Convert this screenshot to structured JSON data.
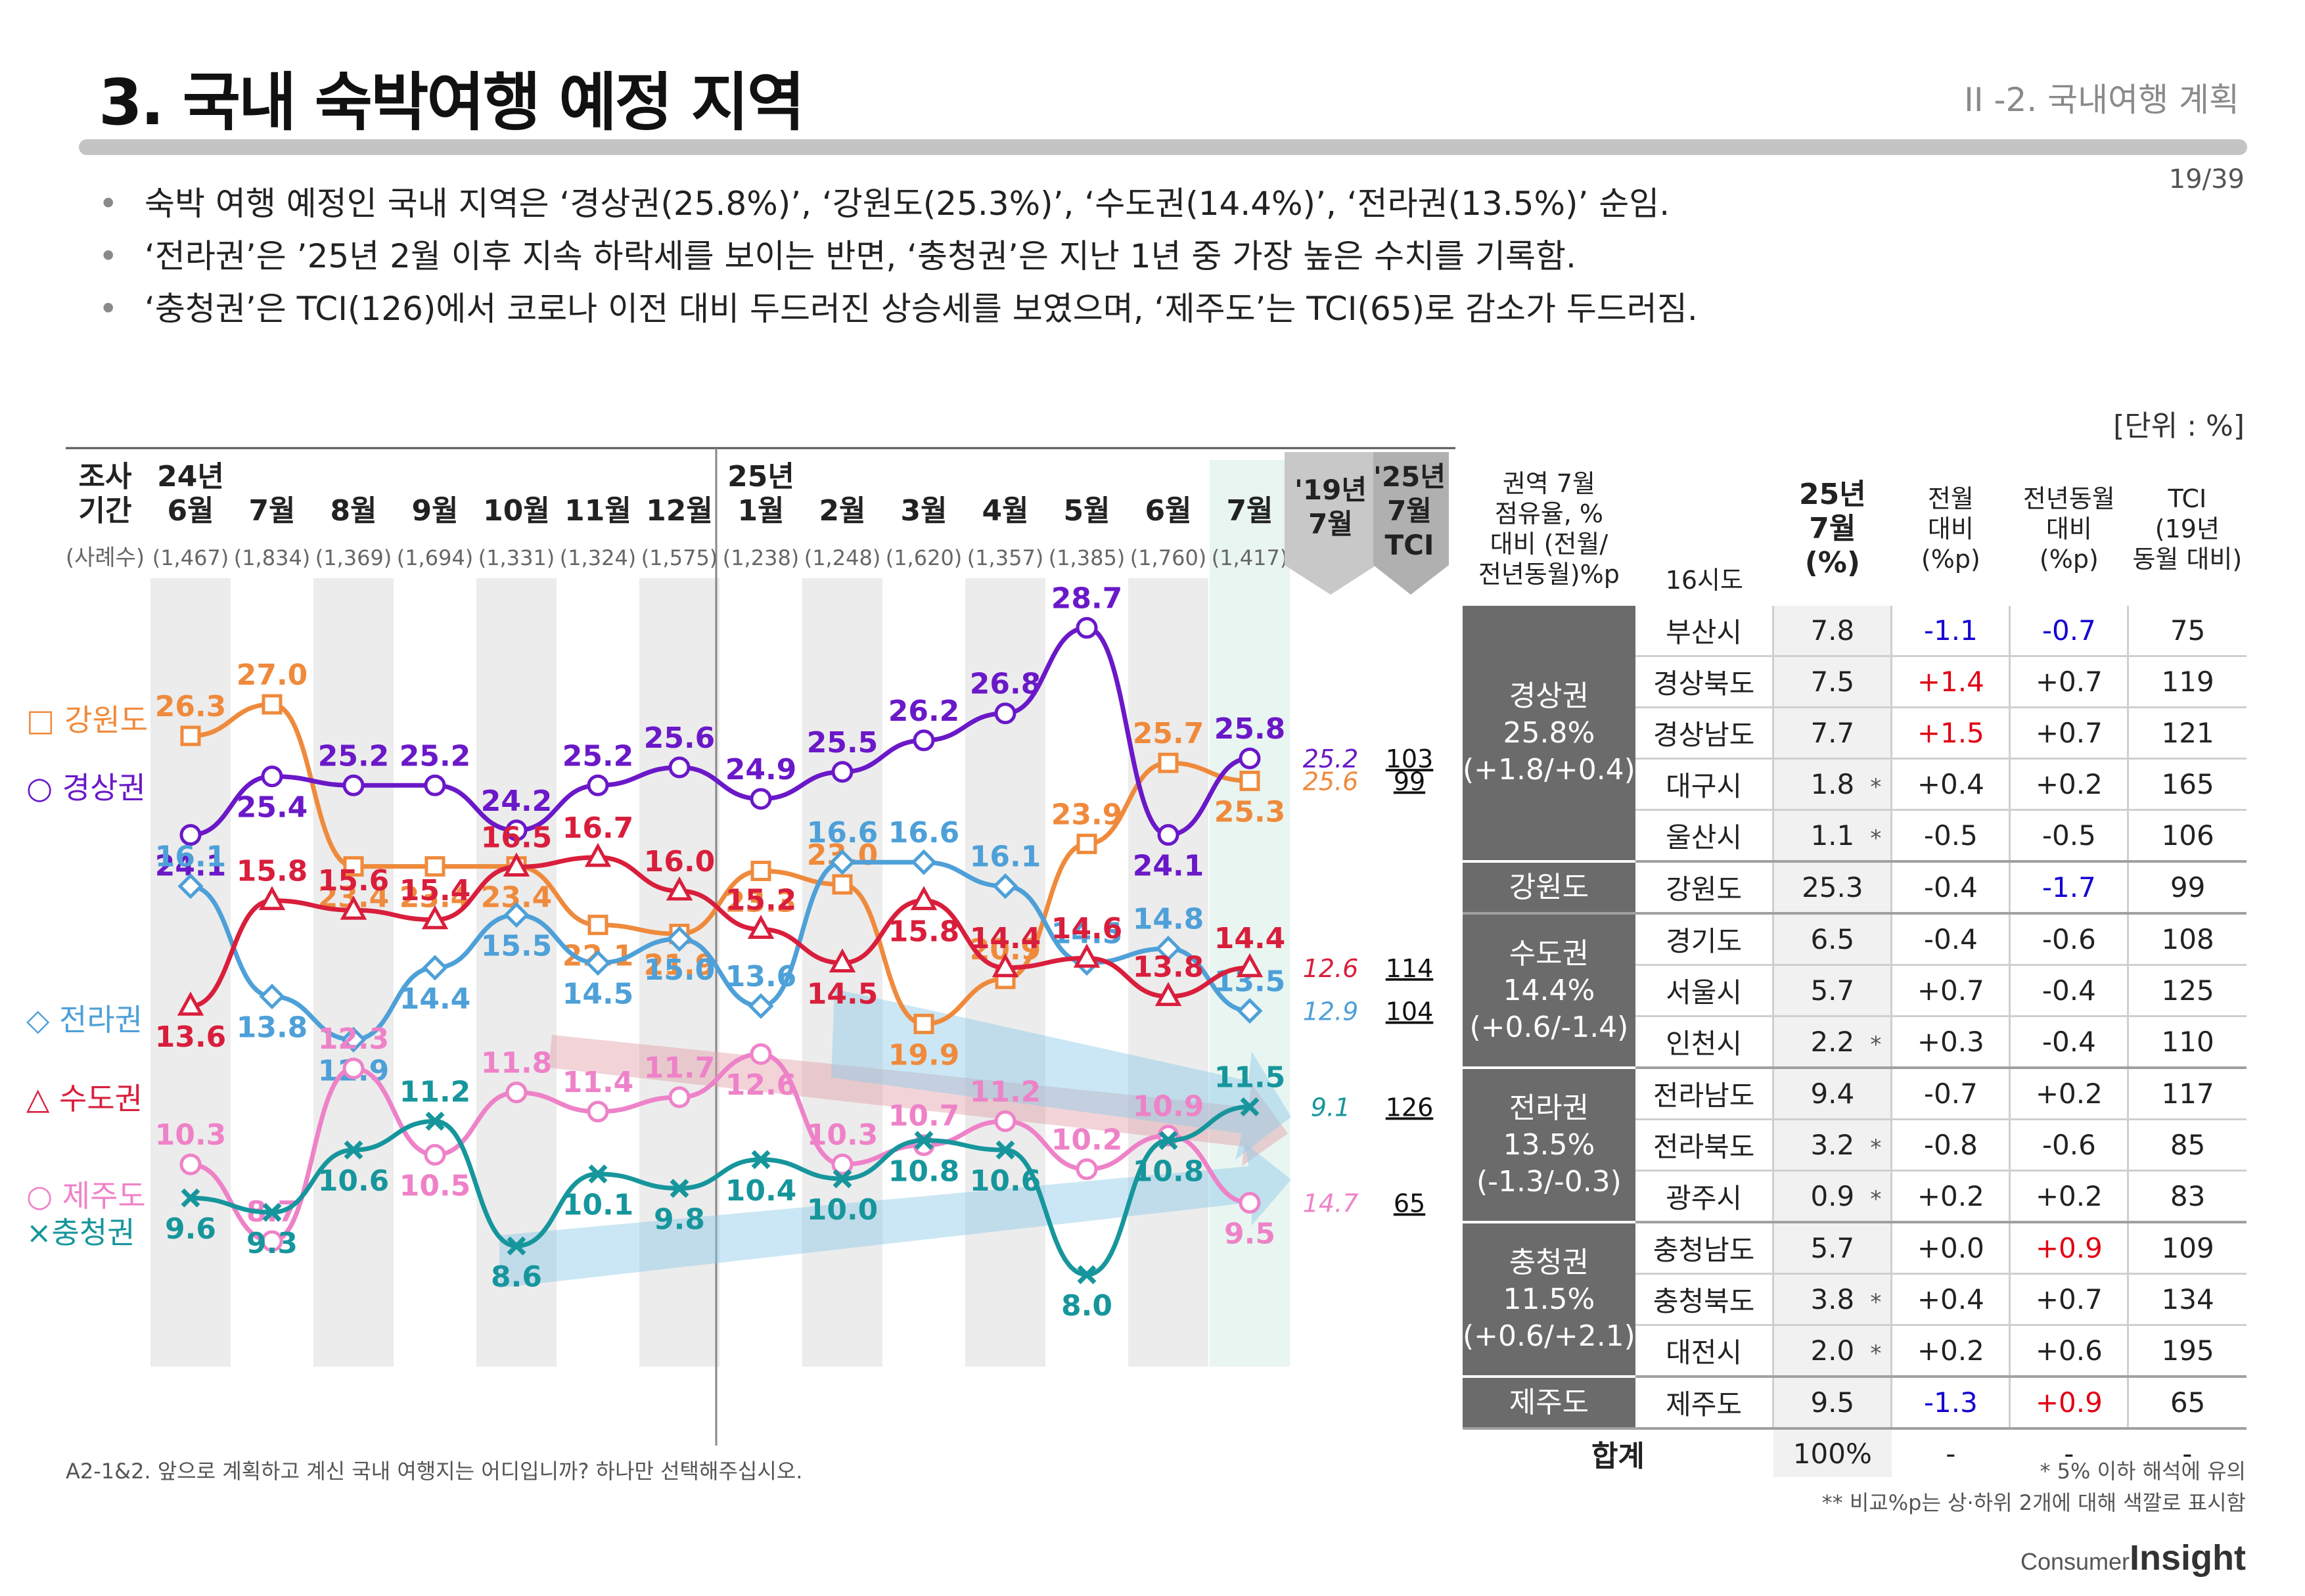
{
  "header": {
    "title": "3. 국내 숙박여행 예정 지역",
    "section": "II -2. 국내여행 계획",
    "page": "19/39"
  },
  "bullets": [
    "숙박 여행 예정인 국내 지역은 ‘경상권(25.8%)’, ‘강원도(25.3%)’, ‘수도권(14.4%)’, ‘전라권(13.5%)’ 순임.",
    "‘전라권’은 ’25년 2월 이후 지속 하락세를 보이는 반면, ‘충청권’은 지난 1년 중 가장 높은 수치를 기록함.",
    "‘충청권’은 TCI(126)에서 코로나 이전 대비 두드러진 상승세를 보였으며, ‘제주도’는 TCI(65)로 감소가 두드러짐."
  ],
  "unit": "[단위 : %]",
  "chart_data": {
    "type": "line",
    "title": "국내 숙박여행 예정 지역 추이",
    "period_label": [
      "조사",
      "기간"
    ],
    "sample_label": "(사례수)",
    "categories": [
      {
        "label": [
          "24년",
          "6월"
        ],
        "n": "(1,467)"
      },
      {
        "label": [
          "7월"
        ],
        "n": "(1,834)"
      },
      {
        "label": [
          "8월"
        ],
        "n": "(1,369)"
      },
      {
        "label": [
          "9월"
        ],
        "n": "(1,694)"
      },
      {
        "label": [
          "10월"
        ],
        "n": "(1,331)"
      },
      {
        "label": [
          "11월"
        ],
        "n": "(1,324)"
      },
      {
        "label": [
          "12월"
        ],
        "n": "(1,575)"
      },
      {
        "label": [
          "25년",
          "1월"
        ],
        "n": "(1,238)"
      },
      {
        "label": [
          "2월"
        ],
        "n": "(1,248)"
      },
      {
        "label": [
          "3월"
        ],
        "n": "(1,620)"
      },
      {
        "label": [
          "4월"
        ],
        "n": "(1,357)"
      },
      {
        "label": [
          "5월"
        ],
        "n": "(1,385)"
      },
      {
        "label": [
          "6월"
        ],
        "n": "(1,760)"
      },
      {
        "label": [
          "7월"
        ],
        "n": "(1,417)"
      }
    ],
    "extra_columns": [
      [
        "'19년",
        "7월"
      ],
      [
        "'25년",
        "7월",
        "TCI"
      ]
    ],
    "series": [
      {
        "name": "강원도",
        "marker": "square",
        "color": "#ef8a3c",
        "values": [
          26.3,
          27.0,
          23.4,
          23.4,
          23.4,
          22.1,
          21.9,
          23.3,
          23.0,
          19.9,
          20.9,
          23.9,
          25.7,
          25.3
        ],
        "value_labels": [
          "26.3",
          "27.0",
          "23.4",
          "23.4",
          "23.4",
          "22.1",
          "21.9",
          "23.3",
          "23.0",
          "19.9",
          "20.9",
          "23.9",
          "25.7",
          "25.3"
        ],
        "y2019": "25.6",
        "tci": "99"
      },
      {
        "name": "경상권",
        "marker": "circle",
        "color": "#6a18c8",
        "values": [
          24.1,
          25.4,
          25.2,
          25.2,
          24.2,
          25.2,
          25.6,
          24.9,
          25.5,
          26.2,
          26.8,
          28.7,
          24.1,
          25.8
        ],
        "value_labels": [
          "24.1",
          "25.4",
          "25.2",
          "25.2",
          "24.2",
          "25.2",
          "25.6",
          "24.9",
          "25.5",
          "26.2",
          "26.8",
          "28.7",
          "24.1",
          "25.8"
        ],
        "y2019": "25.2",
        "tci": "103"
      },
      {
        "name": "전라권",
        "marker": "diamond",
        "color": "#4ea0d8",
        "values": [
          16.1,
          13.8,
          12.9,
          14.4,
          15.5,
          14.5,
          15.0,
          13.6,
          16.6,
          16.6,
          16.1,
          14.5,
          14.8,
          13.5
        ],
        "value_labels": [
          "16.1",
          "13.8",
          "12.9",
          "14.4",
          "15.5",
          "14.5",
          "15.0",
          "13.6",
          "16.6",
          "16.6",
          "16.1",
          "14.5",
          "14.8",
          "13.5"
        ],
        "y2019": "12.9",
        "tci": "104"
      },
      {
        "name": "수도권",
        "marker": "triangle",
        "color": "#d91e3c",
        "values": [
          13.6,
          15.8,
          15.6,
          15.4,
          16.5,
          16.7,
          16.0,
          15.2,
          14.5,
          15.8,
          14.4,
          14.6,
          13.8,
          14.4
        ],
        "value_labels": [
          "13.6",
          "15.8",
          "15.6",
          "15.4",
          "16.5",
          "16.7",
          "16.0",
          "15.2",
          "14.5",
          "15.8",
          "14.4",
          "14.6",
          "13.8",
          "14.4"
        ],
        "y2019": "12.6",
        "tci": "114"
      },
      {
        "name": "제주도",
        "marker": "circle",
        "color": "#ee82c8",
        "values": [
          10.3,
          8.7,
          12.3,
          10.5,
          11.8,
          11.4,
          11.7,
          12.6,
          10.3,
          10.7,
          11.2,
          10.2,
          10.9,
          9.5
        ],
        "value_labels": [
          "10.3",
          "8.7",
          "12.3",
          "10.5",
          "11.8",
          "11.4",
          "11.7",
          "12.6",
          "10.3",
          "10.7",
          "11.2",
          "10.2",
          "10.9",
          "9.5"
        ],
        "y2019": "14.7",
        "tci": "65"
      },
      {
        "name": "충청권",
        "marker": "cross",
        "color": "#16969c",
        "values": [
          9.6,
          9.3,
          10.6,
          11.2,
          8.6,
          10.1,
          9.8,
          10.4,
          10.0,
          10.8,
          10.6,
          8.0,
          10.8,
          11.5
        ],
        "value_labels": [
          "9.6",
          "9.3",
          "10.6",
          "11.2",
          "8.6",
          "10.1",
          "9.8",
          "10.4",
          "10.0",
          "10.8",
          "10.6",
          "8.0",
          "10.8",
          "11.5"
        ],
        "y2019": "9.1",
        "tci": "126"
      }
    ],
    "legend_labels": [
      "□ 강원도",
      "○ 경상권",
      "◇ 전라권",
      "△ 수도권",
      "○ 제주도",
      "×충청권"
    ]
  },
  "table": {
    "headers": {
      "group": [
        "권역 7월",
        "점유율, %",
        "대비 (전월/",
        "전년동월)%p"
      ],
      "region": "16시도",
      "pct": [
        "25년",
        "7월",
        "(%)"
      ],
      "mom": [
        "전월",
        "대비",
        "(%p)"
      ],
      "yoy": [
        "전년동월",
        "대비",
        "(%p)"
      ],
      "tci": [
        "TCI",
        "(19년",
        "동월 대비)"
      ]
    },
    "groups": [
      {
        "name": [
          "경상권",
          "25.8%",
          "(+1.8/+0.4)"
        ],
        "rows": [
          {
            "region": "부산시",
            "pct": "7.8",
            "star": "",
            "mom": "-1.1",
            "mom_hl": "blue",
            "yoy": "-0.7",
            "yoy_hl": "blue",
            "tci": "75"
          },
          {
            "region": "경상북도",
            "pct": "7.5",
            "star": "",
            "mom": "+1.4",
            "mom_hl": "red",
            "yoy": "+0.7",
            "yoy_hl": "",
            "tci": "119"
          },
          {
            "region": "경상남도",
            "pct": "7.7",
            "star": "",
            "mom": "+1.5",
            "mom_hl": "red",
            "yoy": "+0.7",
            "yoy_hl": "",
            "tci": "121"
          },
          {
            "region": "대구시",
            "pct": "1.8",
            "star": "*",
            "mom": "+0.4",
            "mom_hl": "",
            "yoy": "+0.2",
            "yoy_hl": "",
            "tci": "165"
          },
          {
            "region": "울산시",
            "pct": "1.1",
            "star": "*",
            "mom": "-0.5",
            "mom_hl": "",
            "yoy": "-0.5",
            "yoy_hl": "",
            "tci": "106"
          }
        ]
      },
      {
        "name": [
          "강원도"
        ],
        "rows": [
          {
            "region": "강원도",
            "pct": "25.3",
            "star": "",
            "mom": "-0.4",
            "mom_hl": "",
            "yoy": "-1.7",
            "yoy_hl": "blue",
            "tci": "99"
          }
        ]
      },
      {
        "name": [
          "수도권",
          "14.4%",
          "(+0.6/-1.4)"
        ],
        "rows": [
          {
            "region": "경기도",
            "pct": "6.5",
            "star": "",
            "mom": "-0.4",
            "mom_hl": "",
            "yoy": "-0.6",
            "yoy_hl": "",
            "tci": "108"
          },
          {
            "region": "서울시",
            "pct": "5.7",
            "star": "",
            "mom": "+0.7",
            "mom_hl": "",
            "yoy": "-0.4",
            "yoy_hl": "",
            "tci": "125"
          },
          {
            "region": "인천시",
            "pct": "2.2",
            "star": "*",
            "mom": "+0.3",
            "mom_hl": "",
            "yoy": "-0.4",
            "yoy_hl": "",
            "tci": "110"
          }
        ]
      },
      {
        "name": [
          "전라권",
          "13.5%",
          "(-1.3/-0.3)"
        ],
        "rows": [
          {
            "region": "전라남도",
            "pct": "9.4",
            "star": "",
            "mom": "-0.7",
            "mom_hl": "",
            "yoy": "+0.2",
            "yoy_hl": "",
            "tci": "117"
          },
          {
            "region": "전라북도",
            "pct": "3.2",
            "star": "*",
            "mom": "-0.8",
            "mom_hl": "",
            "yoy": "-0.6",
            "yoy_hl": "",
            "tci": "85"
          },
          {
            "region": "광주시",
            "pct": "0.9",
            "star": "*",
            "mom": "+0.2",
            "mom_hl": "",
            "yoy": "+0.2",
            "yoy_hl": "",
            "tci": "83"
          }
        ]
      },
      {
        "name": [
          "충청권",
          "11.5%",
          "(+0.6/+2.1)"
        ],
        "rows": [
          {
            "region": "충청남도",
            "pct": "5.7",
            "star": "",
            "mom": "+0.0",
            "mom_hl": "",
            "yoy": "+0.9",
            "yoy_hl": "red",
            "tci": "109"
          },
          {
            "region": "충청북도",
            "pct": "3.8",
            "star": "*",
            "mom": "+0.4",
            "mom_hl": "",
            "yoy": "+0.7",
            "yoy_hl": "",
            "tci": "134"
          },
          {
            "region": "대전시",
            "pct": "2.0",
            "star": "*",
            "mom": "+0.2",
            "mom_hl": "",
            "yoy": "+0.6",
            "yoy_hl": "",
            "tci": "195"
          }
        ]
      },
      {
        "name": [
          "제주도"
        ],
        "rows": [
          {
            "region": "제주도",
            "pct": "9.5",
            "star": "",
            "mom": "-1.3",
            "mom_hl": "blue",
            "yoy": "+0.9",
            "yoy_hl": "red",
            "tci": "65"
          }
        ]
      }
    ],
    "total": {
      "label": "합계",
      "pct": "100%",
      "mom": "-",
      "yoy": "-",
      "tci": "-"
    }
  },
  "footer": {
    "question": "A2-1&2. 앞으로 계획하고 계신 국내 여행지는 어디입니까? 하나만 선택해주십시오.",
    "note1": "* 5% 이하 해석에 유의",
    "note2": "** 비교%p는 상·하위 2개에 대해 색깔로 표시함",
    "logo_small": "Consumer",
    "logo_big": "Insight"
  }
}
